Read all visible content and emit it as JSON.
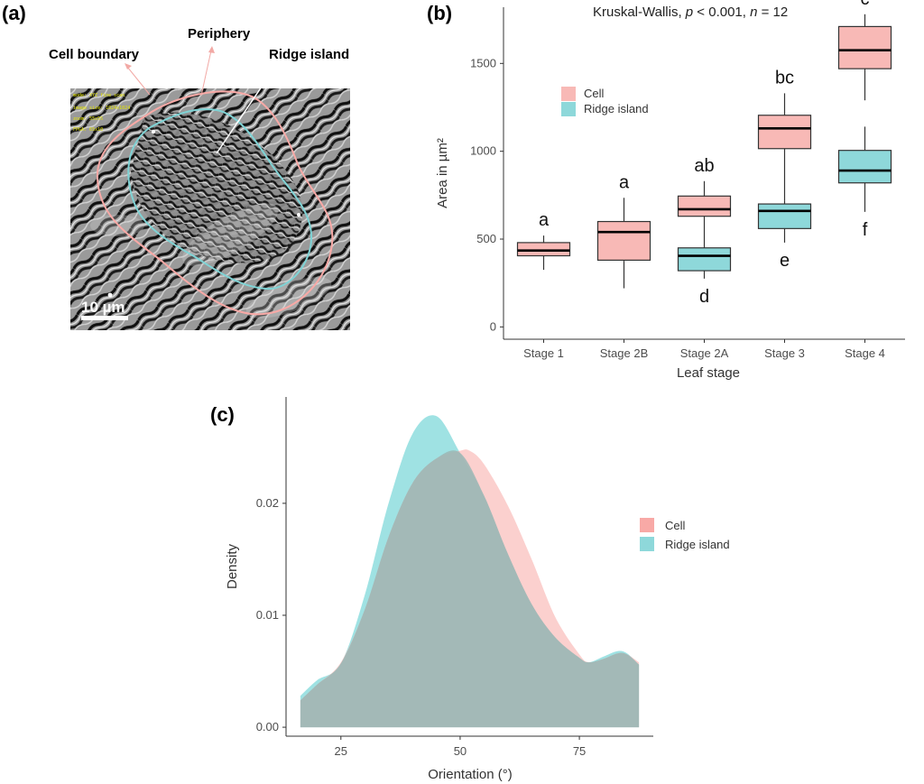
{
  "panels": {
    "a": {
      "label": "(a)",
      "annotations": {
        "cell_boundary": "Cell boundary",
        "periphery": "Periphery",
        "ridge_island": "Ridge island"
      },
      "scale_bar": "10 µm",
      "micro_text": [
        "mode: XYZ fine scan",
        "image size: 1024x1024",
        "zoom: 55x55",
        "FPGA: 65x10"
      ],
      "colors": {
        "cell": "#f8a9a6",
        "ridge": "#7fd3d5",
        "pointer": "#ffffff"
      }
    },
    "b": {
      "label": "(b)"
    },
    "c": {
      "label": "(c)"
    }
  },
  "chart_data": [
    {
      "id": "b",
      "type": "box",
      "title": "",
      "stat_prefix": "Kruskal-Wallis, ",
      "stat_p": "p",
      "stat_mid": " < 0.001, ",
      "stat_n": "n",
      "stat_end": " = 12",
      "xlabel": "Leaf stage",
      "ylabel": "Area in µm²",
      "ylim": [
        -70,
        1820
      ],
      "yticks": [
        0,
        500,
        1000,
        1500
      ],
      "categories": [
        "Stage 1",
        "Stage 2B",
        "Stage 2A",
        "Stage 3",
        "Stage 4"
      ],
      "legend": [
        {
          "name": "Cell",
          "color": "#f8b9b6"
        },
        {
          "name": "Ridge island",
          "color": "#8ed8da"
        }
      ],
      "series": [
        {
          "name": "Cell",
          "color": "#f8b9b6",
          "boxes": [
            {
              "cat": 0,
              "min": 325,
              "q1": 405,
              "median": 435,
              "q3": 480,
              "max": 520,
              "letter": "a",
              "letter_pos": "above"
            },
            {
              "cat": 1,
              "min": 220,
              "q1": 380,
              "median": 540,
              "q3": 600,
              "max": 735,
              "letter": "a",
              "letter_pos": "above"
            },
            {
              "cat": 2,
              "min": 590,
              "q1": 630,
              "median": 670,
              "q3": 745,
              "max": 830,
              "letter": "ab",
              "letter_pos": "above"
            },
            {
              "cat": 3,
              "min": 720,
              "q1": 1015,
              "median": 1130,
              "q3": 1205,
              "max": 1330,
              "letter": "bc",
              "letter_pos": "above"
            },
            {
              "cat": 4,
              "min": 1290,
              "q1": 1470,
              "median": 1575,
              "q3": 1710,
              "max": 1780,
              "letter": "c",
              "letter_pos": "above"
            }
          ]
        },
        {
          "name": "Ridge island",
          "color": "#8ed8da",
          "boxes": [
            {
              "cat": 2,
              "min": 275,
              "q1": 320,
              "median": 405,
              "q3": 450,
              "max": 590,
              "letter": "d",
              "letter_pos": "below"
            },
            {
              "cat": 3,
              "min": 480,
              "q1": 560,
              "median": 660,
              "q3": 700,
              "max": 720,
              "letter": "e",
              "letter_pos": "below"
            },
            {
              "cat": 4,
              "min": 655,
              "q1": 820,
              "median": 890,
              "q3": 1005,
              "max": 1140,
              "letter": "f",
              "letter_pos": "below"
            }
          ]
        }
      ]
    },
    {
      "id": "c",
      "type": "area",
      "title": "",
      "xlabel": "Orientation (°)",
      "ylabel": "Density",
      "xlim": [
        13.5,
        90.5
      ],
      "ylim": [
        -0.0008,
        0.0295
      ],
      "xticks": [
        25,
        50,
        75
      ],
      "yticks": [
        0.0,
        0.01,
        0.02
      ],
      "ytick_labels": [
        "0.00",
        "0.01",
        "0.02"
      ],
      "legend": [
        {
          "name": "Cell",
          "color": "#f8a9a6"
        },
        {
          "name": "Ridge island",
          "color": "#8ed8da"
        }
      ],
      "series": [
        {
          "name": "Cell",
          "color": "#f8a9a6",
          "x": [
            16.5,
            20,
            25,
            30,
            35,
            40,
            45,
            50,
            52,
            55,
            60,
            65,
            70,
            75,
            77,
            80,
            83,
            85,
            87.5
          ],
          "y": [
            0.0024,
            0.0038,
            0.0058,
            0.0105,
            0.017,
            0.0218,
            0.024,
            0.0247,
            0.0247,
            0.0235,
            0.0198,
            0.015,
            0.0098,
            0.0065,
            0.0058,
            0.0061,
            0.0066,
            0.0065,
            0.0058
          ]
        },
        {
          "name": "Ridge island",
          "color": "#7fd8da",
          "x": [
            16.5,
            20,
            25,
            30,
            35,
            40,
            45,
            50,
            55,
            60,
            65,
            70,
            75,
            77,
            80,
            83,
            85,
            87.5
          ],
          "y": [
            0.0028,
            0.0042,
            0.0057,
            0.0118,
            0.02,
            0.0262,
            0.0278,
            0.0245,
            0.0207,
            0.0155,
            0.011,
            0.008,
            0.0062,
            0.0058,
            0.0063,
            0.0068,
            0.0066,
            0.0056
          ]
        }
      ]
    }
  ]
}
